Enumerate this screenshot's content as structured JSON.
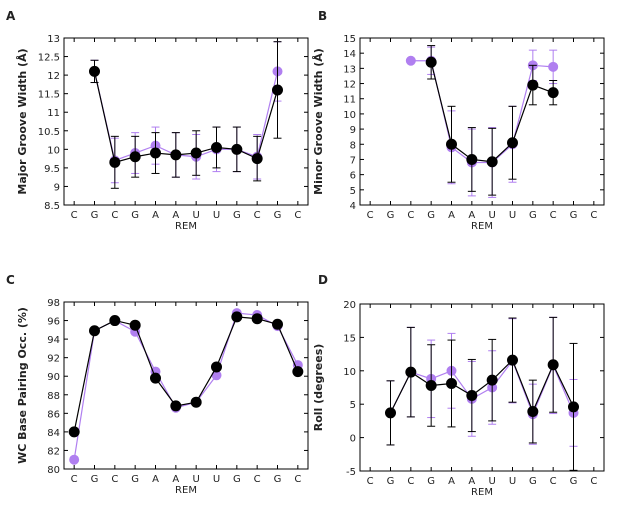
{
  "chart_data": [
    {
      "panel": "A",
      "type": "line",
      "categories": [
        "C",
        "G",
        "C",
        "G",
        "A",
        "A",
        "U",
        "U",
        "G",
        "C",
        "G",
        "C"
      ],
      "xlabel": "REM",
      "ylabel": "Major Groove Width (Å)",
      "ylim": [
        8.5,
        13
      ],
      "yticks": [
        8.5,
        9,
        9.5,
        10,
        10.5,
        11,
        11.5,
        12,
        12.5,
        13
      ],
      "series": [
        {
          "color": "#b07ff0",
          "values": [
            null,
            12.1,
            9.7,
            9.9,
            10.1,
            9.85,
            9.8,
            10.0,
            10.0,
            9.8,
            12.1,
            null
          ],
          "errors": [
            null,
            0.3,
            0.6,
            0.55,
            0.5,
            0.6,
            0.6,
            0.6,
            0.6,
            0.6,
            0.8,
            null
          ]
        },
        {
          "color": "#000000",
          "values": [
            null,
            12.1,
            9.65,
            9.8,
            9.9,
            9.85,
            9.9,
            10.05,
            10.0,
            9.75,
            11.6,
            null
          ],
          "errors": [
            null,
            0.3,
            0.7,
            0.55,
            0.55,
            0.6,
            0.6,
            0.55,
            0.6,
            0.6,
            1.3,
            null
          ]
        }
      ]
    },
    {
      "panel": "B",
      "type": "line",
      "categories": [
        "C",
        "G",
        "C",
        "G",
        "A",
        "A",
        "U",
        "U",
        "G",
        "C",
        "G",
        "C"
      ],
      "xlabel": "REM",
      "ylabel": "Minor Groove Width (Å)",
      "ylim": [
        4,
        15
      ],
      "yticks": [
        4,
        5,
        6,
        7,
        8,
        9,
        10,
        11,
        12,
        13,
        14,
        15
      ],
      "series": [
        {
          "color": "#b07ff0",
          "values": [
            null,
            null,
            13.5,
            13.5,
            7.8,
            6.8,
            6.8,
            8.0,
            13.2,
            13.1,
            null,
            null
          ],
          "errors": [
            null,
            null,
            0,
            0.9,
            2.4,
            2.2,
            2.3,
            2.5,
            1.0,
            1.1,
            null,
            null
          ]
        },
        {
          "color": "#000000",
          "values": [
            null,
            null,
            null,
            13.4,
            8.0,
            7.0,
            6.85,
            8.1,
            11.9,
            11.4,
            null,
            null
          ],
          "errors": [
            null,
            null,
            null,
            1.1,
            2.5,
            2.1,
            2.2,
            2.4,
            1.3,
            0.8,
            null,
            null
          ]
        }
      ]
    },
    {
      "panel": "C",
      "type": "line",
      "categories": [
        "C",
        "G",
        "C",
        "G",
        "A",
        "A",
        "U",
        "U",
        "G",
        "C",
        "G",
        "C"
      ],
      "xlabel": "REM",
      "ylabel": "WC Base Pairing Occ. (%)",
      "ylim": [
        80,
        98
      ],
      "yticks": [
        80,
        82,
        84,
        86,
        88,
        90,
        92,
        94,
        96,
        98
      ],
      "series": [
        {
          "color": "#b07ff0",
          "values": [
            81.0,
            94.9,
            96.0,
            94.8,
            90.5,
            86.6,
            87.2,
            90.1,
            96.8,
            96.6,
            95.4,
            91.2
          ],
          "errors": null
        },
        {
          "color": "#000000",
          "values": [
            84.0,
            94.9,
            96.0,
            95.5,
            89.8,
            86.8,
            87.2,
            91.0,
            96.4,
            96.2,
            95.6,
            90.5
          ],
          "errors": null
        }
      ]
    },
    {
      "panel": "D",
      "type": "line",
      "categories": [
        "C",
        "G",
        "C",
        "G",
        "A",
        "A",
        "U",
        "U",
        "G",
        "C",
        "G",
        "C"
      ],
      "xlabel": "REM",
      "ylabel": "Roll (degrees)",
      "ylim": [
        -5,
        20
      ],
      "yticks": [
        -5,
        0,
        5,
        10,
        15,
        20
      ],
      "series": [
        {
          "color": "#b07ff0",
          "values": [
            null,
            3.7,
            9.8,
            8.8,
            10.0,
            5.8,
            7.5,
            11.5,
            3.5,
            10.8,
            3.7,
            null
          ],
          "errors": [
            null,
            4.8,
            6.7,
            5.8,
            5.6,
            5.6,
            5.5,
            6.3,
            4.5,
            7.2,
            5.0,
            null
          ]
        },
        {
          "color": "#000000",
          "values": [
            null,
            3.7,
            9.8,
            7.8,
            8.1,
            6.3,
            8.6,
            11.6,
            3.9,
            10.9,
            4.6,
            null
          ],
          "errors": [
            null,
            4.8,
            6.7,
            6.1,
            6.5,
            5.4,
            6.1,
            6.3,
            4.7,
            7.1,
            9.5,
            null
          ]
        }
      ]
    }
  ]
}
